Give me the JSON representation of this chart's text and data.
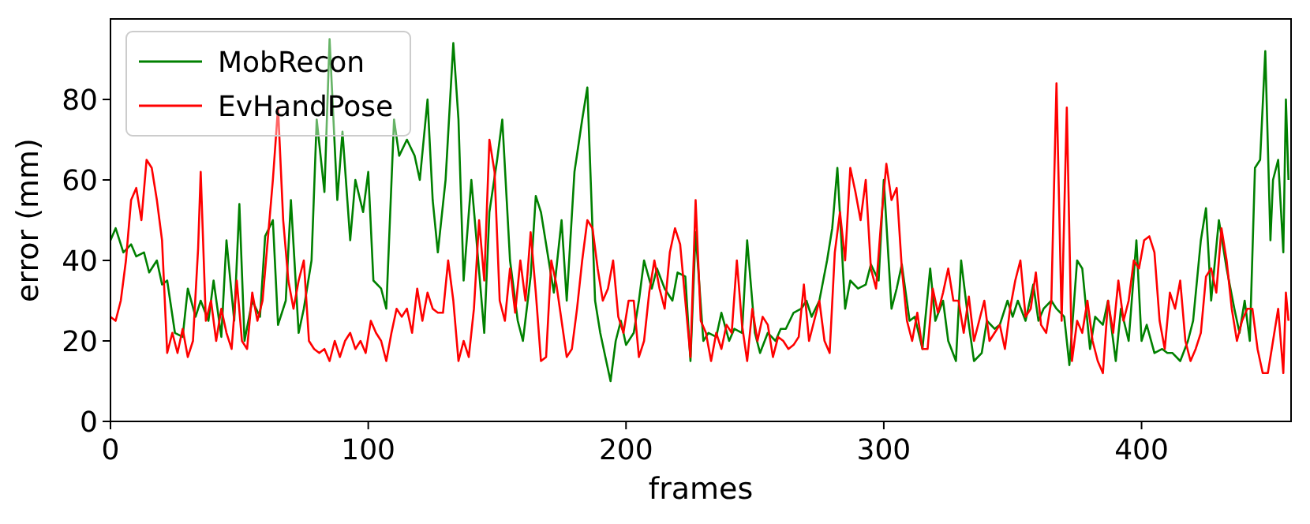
{
  "chart_data": {
    "type": "line",
    "xlabel": "frames",
    "ylabel": "error (mm)",
    "xlim": [
      0,
      458
    ],
    "ylim": [
      0,
      100
    ],
    "xticks": [
      0,
      100,
      200,
      300,
      400
    ],
    "yticks": [
      0,
      20,
      40,
      60,
      80
    ],
    "grid": false,
    "legend": "top left",
    "line_style": "solid",
    "series": [
      {
        "name": "MobRecon",
        "color": "#008000",
        "x": [
          0,
          2,
          5,
          8,
          10,
          13,
          15,
          18,
          20,
          22,
          25,
          28,
          30,
          33,
          35,
          38,
          40,
          43,
          45,
          48,
          50,
          52,
          55,
          58,
          60,
          63,
          65,
          68,
          70,
          73,
          75,
          78,
          80,
          83,
          85,
          88,
          90,
          93,
          95,
          98,
          100,
          102,
          105,
          107,
          110,
          112,
          115,
          118,
          120,
          123,
          125,
          127,
          130,
          133,
          135,
          137,
          140,
          142,
          145,
          147,
          150,
          152,
          155,
          158,
          160,
          163,
          165,
          167,
          170,
          172,
          175,
          177,
          180,
          183,
          185,
          188,
          190,
          192,
          194,
          196,
          198,
          200,
          203,
          205,
          207,
          210,
          212,
          215,
          218,
          220,
          223,
          225,
          227,
          230,
          232,
          235,
          237,
          240,
          242,
          245,
          247,
          250,
          252,
          255,
          258,
          260,
          262,
          265,
          268,
          270,
          272,
          275,
          278,
          280,
          282,
          285,
          287,
          290,
          293,
          295,
          298,
          300,
          303,
          305,
          307,
          310,
          312,
          315,
          318,
          320,
          323,
          325,
          328,
          330,
          333,
          335,
          338,
          340,
          343,
          345,
          348,
          350,
          352,
          355,
          358,
          360,
          362,
          365,
          367,
          370,
          372,
          375,
          377,
          380,
          382,
          385,
          387,
          390,
          392,
          395,
          398,
          400,
          402,
          405,
          408,
          410,
          412,
          415,
          418,
          420,
          423,
          425,
          427,
          430,
          433,
          436,
          438,
          440,
          442,
          444,
          446,
          448,
          450,
          451,
          453,
          455,
          456,
          457
        ],
        "values": [
          45,
          48,
          42,
          44,
          41,
          42,
          37,
          40,
          34,
          35,
          22,
          21,
          33,
          26,
          30,
          25,
          35,
          21,
          45,
          25,
          54,
          20,
          30,
          26,
          46,
          50,
          24,
          30,
          55,
          22,
          28,
          40,
          75,
          57,
          95,
          55,
          72,
          45,
          60,
          52,
          62,
          35,
          33,
          28,
          75,
          66,
          70,
          66,
          60,
          80,
          55,
          42,
          60,
          94,
          75,
          35,
          60,
          45,
          22,
          52,
          65,
          75,
          40,
          25,
          20,
          36,
          56,
          52,
          40,
          32,
          50,
          30,
          62,
          75,
          83,
          30,
          22,
          16,
          10,
          20,
          25,
          19,
          22,
          30,
          40,
          33,
          38,
          33,
          30,
          37,
          36,
          15,
          47,
          20,
          22,
          21,
          27,
          20,
          23,
          22,
          45,
          22,
          17,
          22,
          20,
          23,
          23,
          27,
          28,
          30,
          26,
          30,
          40,
          48,
          63,
          28,
          35,
          33,
          34,
          39,
          35,
          60,
          28,
          33,
          39,
          25,
          26,
          18,
          38,
          25,
          30,
          20,
          15,
          40,
          24,
          15,
          17,
          25,
          23,
          24,
          30,
          26,
          30,
          25,
          34,
          25,
          28,
          30,
          28,
          26,
          14,
          40,
          38,
          18,
          26,
          24,
          30,
          15,
          28,
          20,
          45,
          20,
          24,
          17,
          18,
          17,
          17,
          15,
          20,
          25,
          45,
          53,
          30,
          50,
          38,
          28,
          22,
          30,
          20,
          63,
          65,
          92,
          45,
          60,
          65,
          42,
          80,
          60
        ]
      },
      {
        "name": "EvHandPose",
        "color": "#ff0000",
        "x": [
          0,
          2,
          4,
          6,
          8,
          10,
          12,
          14,
          16,
          18,
          20,
          22,
          24,
          26,
          28,
          30,
          32,
          34,
          35,
          37,
          39,
          41,
          43,
          45,
          47,
          49,
          51,
          53,
          55,
          57,
          59,
          61,
          63,
          65,
          67,
          69,
          71,
          73,
          75,
          77,
          79,
          81,
          83,
          85,
          87,
          89,
          91,
          93,
          95,
          97,
          99,
          101,
          103,
          105,
          107,
          109,
          111,
          113,
          115,
          117,
          119,
          121,
          123,
          125,
          127,
          129,
          131,
          133,
          135,
          137,
          139,
          141,
          143,
          145,
          147,
          149,
          151,
          153,
          155,
          157,
          159,
          161,
          163,
          165,
          167,
          169,
          171,
          173,
          175,
          177,
          179,
          181,
          183,
          185,
          187,
          189,
          191,
          193,
          195,
          197,
          199,
          201,
          203,
          205,
          207,
          209,
          211,
          213,
          215,
          217,
          219,
          221,
          223,
          225,
          227,
          229,
          231,
          233,
          235,
          237,
          239,
          241,
          243,
          245,
          247,
          249,
          251,
          253,
          255,
          257,
          259,
          261,
          263,
          265,
          267,
          269,
          271,
          273,
          275,
          277,
          279,
          281,
          283,
          285,
          287,
          289,
          291,
          293,
          295,
          297,
          299,
          301,
          303,
          305,
          307,
          309,
          311,
          313,
          315,
          317,
          319,
          321,
          323,
          325,
          327,
          329,
          331,
          333,
          335,
          337,
          339,
          341,
          343,
          345,
          347,
          349,
          351,
          353,
          355,
          357,
          359,
          361,
          363,
          365,
          367,
          369,
          371,
          373,
          375,
          377,
          379,
          381,
          383,
          385,
          387,
          389,
          391,
          393,
          395,
          397,
          399,
          401,
          403,
          405,
          407,
          409,
          411,
          413,
          415,
          417,
          419,
          421,
          423,
          425,
          427,
          429,
          431,
          433,
          435,
          437,
          439,
          441,
          443,
          445,
          447,
          449,
          451,
          453,
          455,
          456,
          457
        ],
        "values": [
          26,
          25,
          30,
          40,
          55,
          58,
          50,
          65,
          63,
          55,
          45,
          17,
          22,
          17,
          23,
          16,
          20,
          43,
          62,
          25,
          30,
          20,
          28,
          22,
          18,
          35,
          20,
          18,
          32,
          25,
          30,
          45,
          60,
          78,
          50,
          35,
          28,
          35,
          40,
          20,
          18,
          17,
          18,
          15,
          20,
          16,
          20,
          22,
          18,
          20,
          17,
          25,
          22,
          20,
          15,
          22,
          28,
          26,
          28,
          22,
          33,
          25,
          32,
          28,
          27,
          27,
          40,
          30,
          15,
          20,
          16,
          28,
          50,
          35,
          70,
          62,
          30,
          25,
          38,
          27,
          40,
          30,
          47,
          32,
          15,
          16,
          40,
          34,
          25,
          16,
          18,
          28,
          40,
          50,
          48,
          38,
          30,
          33,
          40,
          26,
          22,
          30,
          30,
          16,
          20,
          32,
          40,
          33,
          28,
          42,
          48,
          44,
          30,
          16,
          55,
          25,
          22,
          15,
          22,
          18,
          24,
          22,
          40,
          24,
          15,
          28,
          20,
          26,
          24,
          16,
          21,
          20,
          18,
          19,
          21,
          34,
          20,
          25,
          30,
          20,
          17,
          42,
          52,
          40,
          63,
          57,
          50,
          60,
          38,
          33,
          50,
          64,
          55,
          58,
          38,
          25,
          20,
          27,
          18,
          18,
          33,
          27,
          32,
          38,
          30,
          30,
          22,
          31,
          20,
          25,
          30,
          20,
          22,
          24,
          18,
          28,
          35,
          40,
          26,
          28,
          37,
          24,
          22,
          30,
          84,
          25,
          78,
          15,
          25,
          22,
          30,
          20,
          15,
          12,
          30,
          22,
          35,
          25,
          30,
          40,
          38,
          45,
          46,
          42,
          25,
          18,
          32,
          28,
          35,
          20,
          15,
          18,
          22,
          36,
          38,
          32,
          48,
          40,
          28,
          20,
          25,
          28,
          28,
          18,
          12,
          12,
          20,
          28,
          12,
          32,
          25
        ]
      }
    ]
  }
}
